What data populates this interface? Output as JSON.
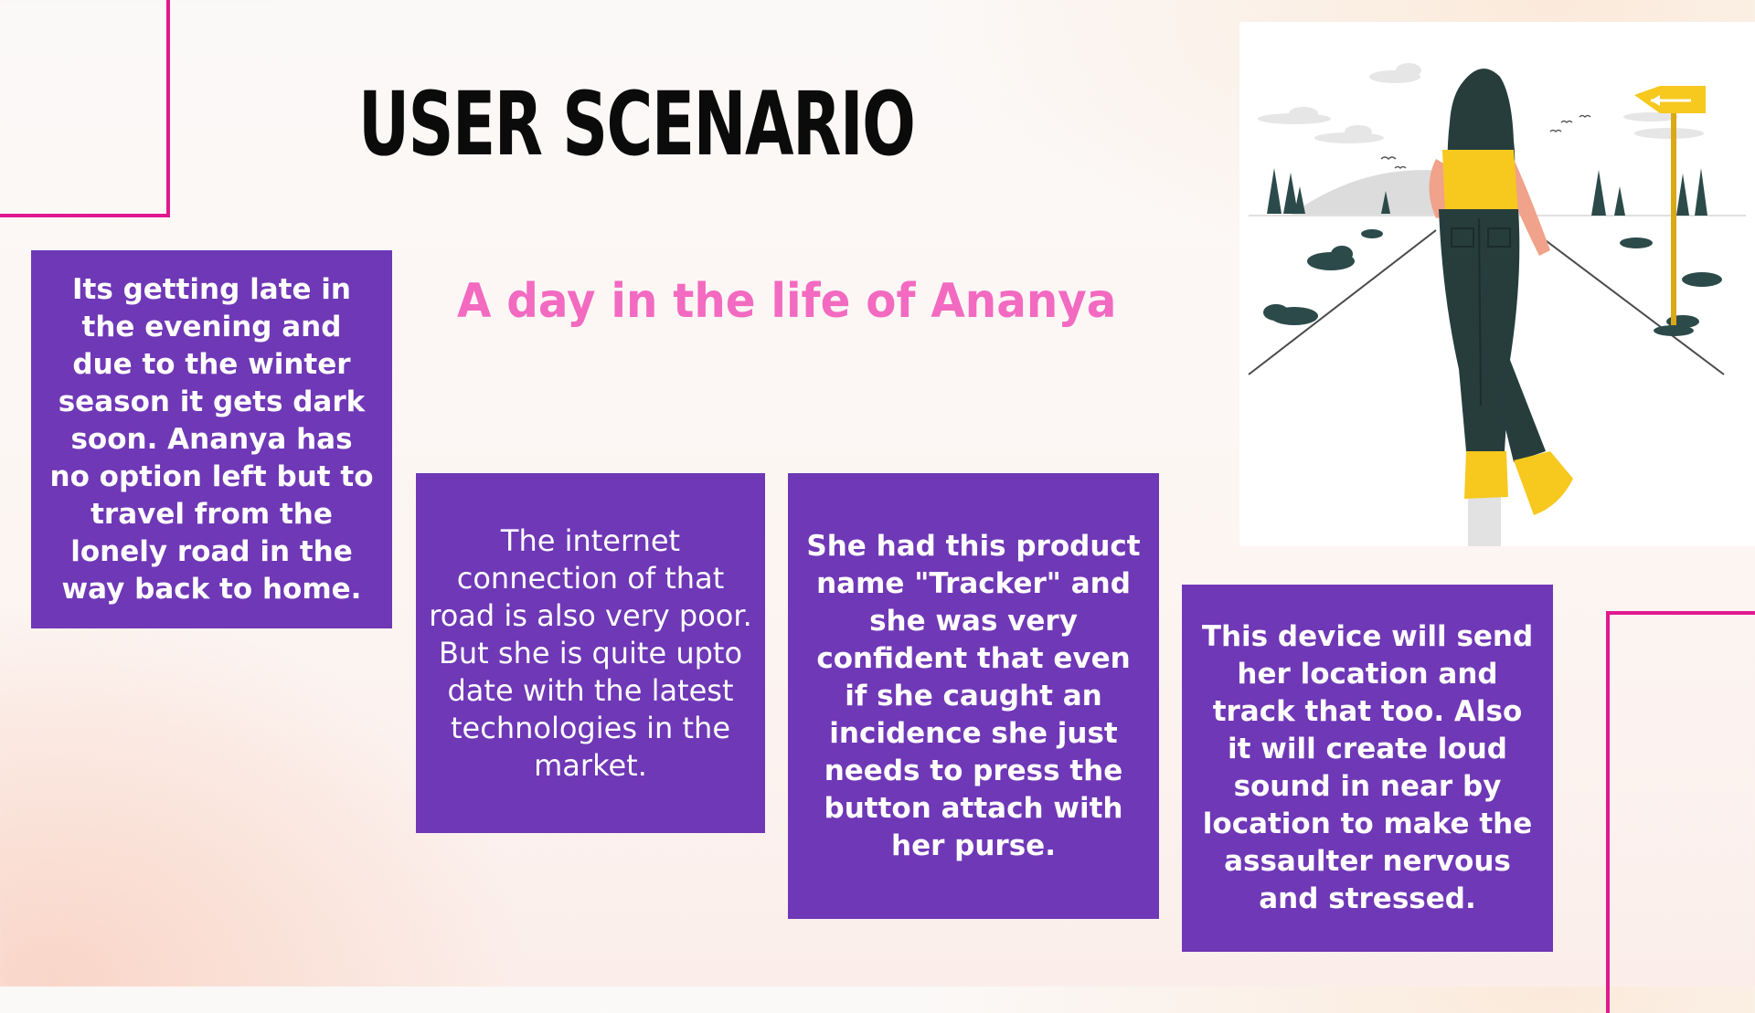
{
  "slide": {
    "title": "USER SCENARIO",
    "subtitle": "A day in the life of Ananya"
  },
  "cards": [
    "Its getting late in the evening and due to the winter season it gets dark soon. Ananya has no option left but to travel from the lonely road in the way back to home.",
    "The internet connection of that road is also very poor. But she is quite upto date with the latest technologies in the market.",
    "She had this product name \"Tracker\" and she was very confident that even if she caught an incidence she just needs to press the button attach with her purse.",
    "This device will send her location and track that too. Also it will create loud sound in near by location to make the assaulter nervous and stressed."
  ],
  "illustration": {
    "subject": "woman-walking-on-road-icon",
    "colors": {
      "card_bg": "#6f38b6",
      "accent_pink": "#e0198f",
      "subtitle_pink": "#f36ac1",
      "jumpsuit": "#263d3c",
      "shirt_and_shoes": "#f7c81e",
      "sign": "#f7c81e"
    }
  }
}
